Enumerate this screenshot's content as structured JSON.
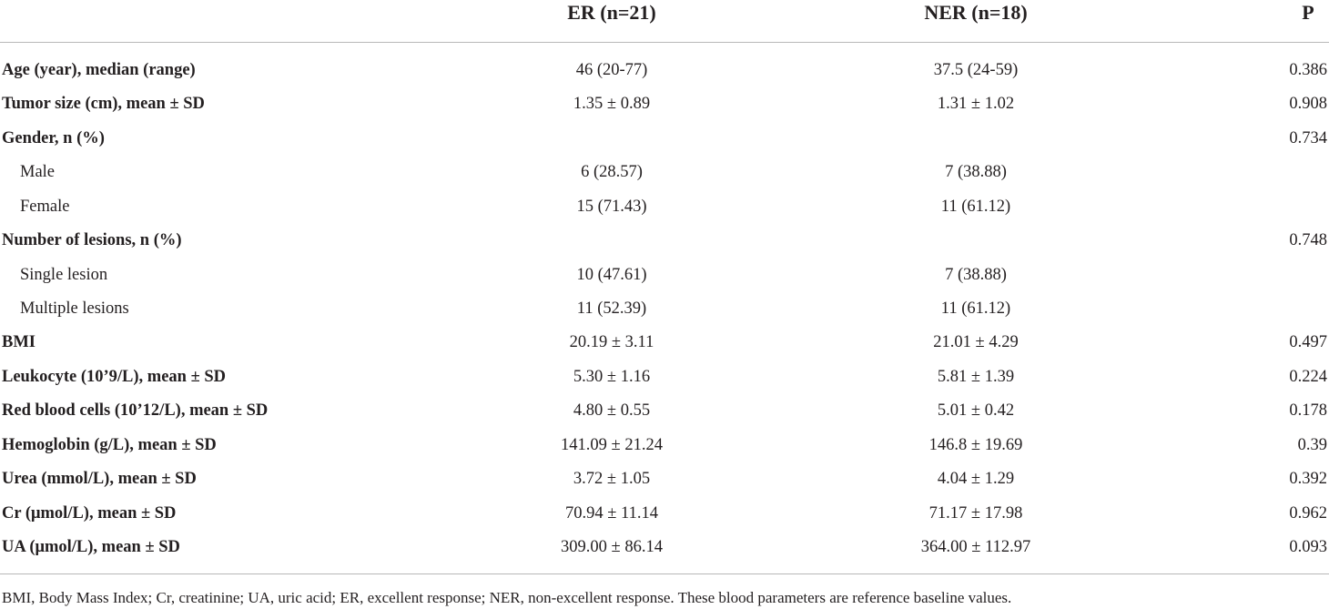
{
  "table": {
    "header": {
      "er": "ER (n=21)",
      "ner": "NER (n=18)",
      "p": "P"
    },
    "rows": [
      {
        "label": "Age (year), median (range)",
        "er": "46 (20-77)",
        "ner": "37.5 (24-59)",
        "p": "0.386"
      },
      {
        "label": "Tumor size (cm), mean ± SD",
        "er": "1.35 ± 0.89",
        "ner": "1.31 ± 1.02",
        "p": "0.908"
      },
      {
        "label": "Gender, n (%)",
        "p": "0.734",
        "items": [
          {
            "label": "Male",
            "er": "6 (28.57)",
            "ner": "7 (38.88)"
          },
          {
            "label": "Female",
            "er": "15 (71.43)",
            "ner": "11 (61.12)"
          }
        ]
      },
      {
        "label": "Number of lesions, n (%)",
        "p": "0.748",
        "items": [
          {
            "label": "Single lesion",
            "er": "10 (47.61)",
            "ner": "7 (38.88)"
          },
          {
            "label": "Multiple lesions",
            "er": "11 (52.39)",
            "ner": "11 (61.12)"
          }
        ]
      },
      {
        "label": "BMI",
        "er": "20.19 ± 3.11",
        "ner": "21.01 ± 4.29",
        "p": "0.497"
      },
      {
        "label": "Leukocyte (10’9/L), mean ± SD",
        "er": "5.30 ± 1.16",
        "ner": "5.81 ± 1.39",
        "p": "0.224"
      },
      {
        "label": "Red blood cells (10’12/L), mean ± SD",
        "er": "4.80 ± 0.55",
        "ner": "5.01 ± 0.42",
        "p": "0.178"
      },
      {
        "label": "Hemoglobin (g/L), mean ± SD",
        "er": "141.09 ± 21.24",
        "ner": "146.8 ± 19.69",
        "p": "0.39"
      },
      {
        "label": "Urea (mmol/L), mean ± SD",
        "er": "3.72 ± 1.05",
        "ner": "4.04 ± 1.29",
        "p": "0.392"
      },
      {
        "label": "Cr (μmol/L), mean ± SD",
        "er": "70.94 ± 11.14",
        "ner": "71.17 ± 17.98",
        "p": "0.962"
      },
      {
        "label": "UA (μmol/L), mean ± SD",
        "er": "309.00 ± 86.14",
        "ner": "364.00 ± 112.97",
        "p": "0.093"
      }
    ],
    "footnote": "BMI, Body Mass Index; Cr, creatinine; UA, uric acid; ER, excellent response; NER, non-excellent response. These blood parameters are reference baseline values."
  }
}
